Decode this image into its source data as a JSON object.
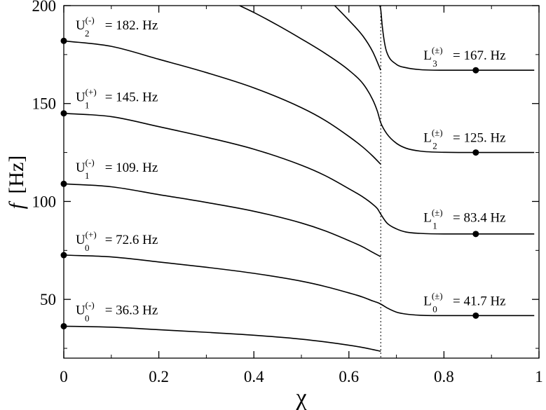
{
  "chart_data": {
    "type": "line",
    "xlabel": "χ",
    "ylabel_italic": "f",
    "ylabel_unit": "[Hz]",
    "xlim": [
      0,
      1
    ],
    "ylim": [
      20,
      200
    ],
    "x_ticks": [
      0,
      0.2,
      0.4,
      0.6,
      0.8,
      1
    ],
    "x_tick_labels": [
      "0",
      "0.2",
      "0.4",
      "0.6",
      "0.8",
      "1"
    ],
    "y_ticks": [
      50,
      100,
      150,
      200
    ],
    "y_tick_labels": [
      "50",
      "100",
      "150",
      "200"
    ],
    "vertical_dotted_line_x": 0.667,
    "series": [
      {
        "x": [
          0,
          0.1,
          0.2,
          0.3,
          0.4,
          0.5,
          0.55,
          0.6,
          0.63,
          0.65,
          0.667
        ],
        "y": [
          36.3,
          35.8,
          34.5,
          33.2,
          31.7,
          29.7,
          28.3,
          26.6,
          25.4,
          24.4,
          23.5
        ]
      },
      {
        "x": [
          0,
          0.1,
          0.2,
          0.3,
          0.4,
          0.5,
          0.55,
          0.6,
          0.63,
          0.65,
          0.66,
          0.667,
          0.68,
          0.7,
          0.72,
          0.75,
          0.8,
          0.87,
          0.95,
          0.99
        ],
        "y": [
          72.6,
          71.7,
          69.1,
          66.4,
          63.3,
          59.3,
          56.6,
          53.3,
          51.1,
          49.2,
          48.4,
          47.6,
          45.7,
          43.5,
          42.5,
          41.9,
          41.7,
          41.7,
          41.7,
          41.7
        ]
      },
      {
        "x": [
          0,
          0.1,
          0.2,
          0.3,
          0.4,
          0.5,
          0.55,
          0.6,
          0.63,
          0.65,
          0.667
        ],
        "y": [
          109,
          107.5,
          103.5,
          99.5,
          95,
          89,
          85,
          80,
          76.7,
          74,
          71.8
        ]
      },
      {
        "x": [
          0,
          0.1,
          0.2,
          0.3,
          0.4,
          0.5,
          0.55,
          0.6,
          0.63,
          0.65,
          0.66,
          0.667,
          0.68,
          0.7,
          0.72,
          0.75,
          0.8,
          0.87,
          0.95,
          0.99
        ],
        "y": [
          145,
          143.3,
          138.2,
          132.8,
          126.7,
          118.5,
          113.2,
          106.5,
          102.2,
          98.6,
          96.3,
          93.5,
          89,
          86,
          84.4,
          83.7,
          83.4,
          83.4,
          83.4,
          83.4
        ]
      },
      {
        "x": [
          0,
          0.1,
          0.2,
          0.3,
          0.4,
          0.5,
          0.55,
          0.6,
          0.63,
          0.65,
          0.667
        ],
        "y": [
          182,
          179.2,
          172.6,
          165.8,
          158,
          147.9,
          141.4,
          133.2,
          127.6,
          123.2,
          119
        ]
      },
      {
        "x": [
          0.37,
          0.4,
          0.45,
          0.5,
          0.55,
          0.6,
          0.63,
          0.65,
          0.66,
          0.667,
          0.68,
          0.7,
          0.72,
          0.75,
          0.8,
          0.87,
          0.95,
          0.99
        ],
        "y": [
          200,
          196.5,
          190,
          183,
          175.6,
          167,
          160,
          152,
          146,
          140.2,
          134.5,
          129.7,
          127.2,
          125.7,
          125.1,
          125,
          125,
          125
        ]
      },
      {
        "x": [
          0.57,
          0.6,
          0.63,
          0.65,
          0.667
        ],
        "y": [
          200,
          192.5,
          184.3,
          176.5,
          167
        ]
      },
      {
        "x": [
          0.665,
          0.667,
          0.67,
          0.675,
          0.68,
          0.7,
          0.72,
          0.75,
          0.8,
          0.87,
          0.95,
          0.99
        ],
        "y": [
          200,
          198,
          190,
          181,
          176,
          170,
          168.3,
          167.3,
          167,
          167,
          167,
          167
        ]
      }
    ],
    "markers": [
      {
        "x": 0,
        "y": 36.3
      },
      {
        "x": 0,
        "y": 72.6
      },
      {
        "x": 0,
        "y": 109
      },
      {
        "x": 0,
        "y": 145
      },
      {
        "x": 0,
        "y": 182
      },
      {
        "x": 0.867,
        "y": 41.7
      },
      {
        "x": 0.867,
        "y": 83.4
      },
      {
        "x": 0.867,
        "y": 125
      },
      {
        "x": 0.867,
        "y": 167
      }
    ],
    "annotations": [
      {
        "base": "U",
        "sub": "0",
        "sup": "(-)",
        "text": " = 36.3 Hz",
        "x": 0.025,
        "y": 42.3
      },
      {
        "base": "U",
        "sub": "0",
        "sup": "(+)",
        "text": " = 72.6 Hz",
        "x": 0.025,
        "y": 78.3
      },
      {
        "base": "U",
        "sub": "1",
        "sup": "(-)",
        "text": " = 109. Hz",
        "x": 0.025,
        "y": 115.1
      },
      {
        "base": "U",
        "sub": "1",
        "sup": "(+)",
        "text": " = 145. Hz",
        "x": 0.025,
        "y": 151.1
      },
      {
        "base": "U",
        "sub": "2",
        "sup": "(-)",
        "text": " = 182. Hz",
        "x": 0.025,
        "y": 187.9
      },
      {
        "base": "L",
        "sub": "0",
        "sup": "(±)",
        "text": " = 41.7 Hz",
        "x": 0.757,
        "y": 47.1
      },
      {
        "base": "L",
        "sub": "1",
        "sup": "(±)",
        "text": " = 83.4 Hz",
        "x": 0.757,
        "y": 89.6
      },
      {
        "base": "L",
        "sub": "2",
        "sup": "(±)",
        "text": " = 125. Hz",
        "x": 0.757,
        "y": 130.4
      },
      {
        "base": "L",
        "sub": "3",
        "sup": "(±)",
        "text": " = 167. Hz",
        "x": 0.757,
        "y": 172.5
      }
    ]
  }
}
